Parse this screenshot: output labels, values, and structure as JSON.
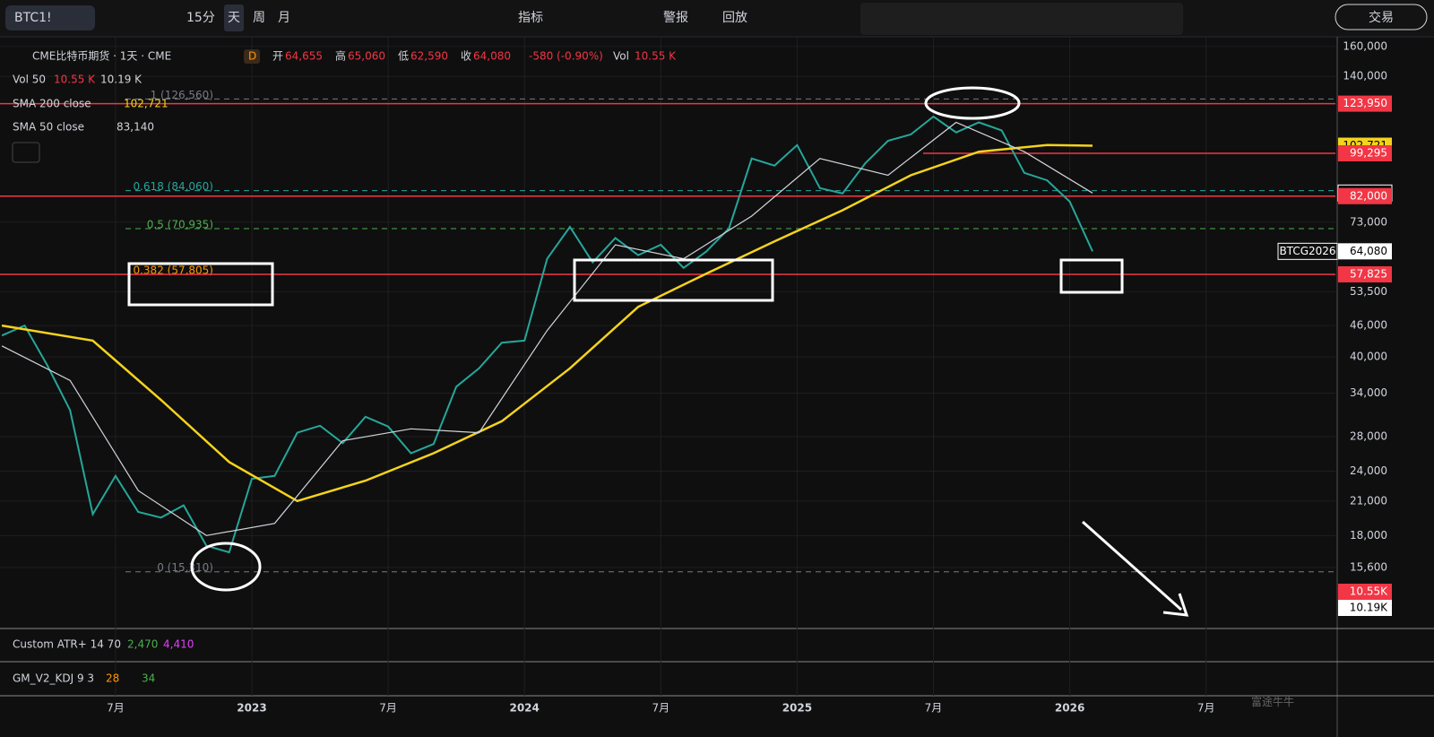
{
  "toolbar": {
    "symbol": "BTC1!",
    "intervals": [
      "15分",
      "天",
      "周",
      "月"
    ],
    "indicators": "指标",
    "alerts": "警报",
    "replay": "回放",
    "trade": "交易"
  },
  "legend": {
    "badge": "D",
    "ohlc": [
      {
        "label": "开",
        "value": "64,655"
      },
      {
        "label": "高",
        "value": "65,060"
      },
      {
        "label": "低",
        "value": "62,590"
      },
      {
        "label": "收",
        "value": "64,080"
      }
    ],
    "change": "-580 (-0.90%)",
    "vol_label": "Vol",
    "vol": "10.55 K",
    "vol50": {
      "name": "Vol 50",
      "a": "10.55 K",
      "b": "10.19 K"
    },
    "sma200_value": "102,721",
    "sma50_value": "83,140"
  },
  "chart_data": {
    "type": "line",
    "log_scale": true,
    "grid": true,
    "ylim": [
      11930,
      167800
    ],
    "yticks": [
      {
        "value": 160000,
        "label": "160,000"
      },
      {
        "value": 140000,
        "label": "140,000"
      },
      {
        "value": 73000,
        "label": "73,000"
      },
      {
        "value": 53500,
        "label": "53,500"
      },
      {
        "value": 46000,
        "label": "46,000"
      },
      {
        "value": 40000,
        "label": "40,000"
      },
      {
        "value": 34000,
        "label": "34,000"
      },
      {
        "value": 28000,
        "label": "28,000"
      },
      {
        "value": 24000,
        "label": "24,000"
      },
      {
        "value": 21000,
        "label": "21,000"
      },
      {
        "value": 18000,
        "label": "18,000"
      },
      {
        "value": 15600,
        "label": "15,600"
      }
    ],
    "xticks": [
      {
        "value": "2022-07",
        "label": "7月"
      },
      {
        "value": "2023-01",
        "label": "2023"
      },
      {
        "value": "2023-07",
        "label": "7月"
      },
      {
        "value": "2024-01",
        "label": "2024"
      },
      {
        "value": "2024-07",
        "label": "7月"
      },
      {
        "value": "2025-01",
        "label": "2025"
      },
      {
        "value": "2025-07",
        "label": "7月"
      },
      {
        "value": "2026-01",
        "label": "2026"
      },
      {
        "value": "2026-07",
        "label": "7月"
      }
    ],
    "series": [
      {
        "name": "CME比特币期货 · 1天 · CME",
        "color": "#26a69a",
        "x": [
          "2022-02",
          "2022-03",
          "2022-04",
          "2022-05",
          "2022-06",
          "2022-07",
          "2022-08",
          "2022-09",
          "2022-10",
          "2022-11",
          "2022-12",
          "2023-01",
          "2023-02",
          "2023-03",
          "2023-04",
          "2023-05",
          "2023-06",
          "2023-07",
          "2023-08",
          "2023-09",
          "2023-10",
          "2023-11",
          "2023-12",
          "2024-01",
          "2024-02",
          "2024-03",
          "2024-04",
          "2024-05",
          "2024-06",
          "2024-07",
          "2024-08",
          "2024-09",
          "2024-10",
          "2024-11",
          "2024-12",
          "2025-01",
          "2025-02",
          "2025-03",
          "2025-04",
          "2025-05",
          "2025-06",
          "2025-07",
          "2025-08",
          "2025-09",
          "2025-10",
          "2025-11",
          "2025-12",
          "2026-01",
          "2026-02"
        ],
        "values": [
          44000,
          46000,
          38500,
          31500,
          19800,
          23500,
          20000,
          19500,
          20600,
          17200,
          16700,
          23200,
          23500,
          28500,
          29400,
          27200,
          30600,
          29300,
          26000,
          27100,
          35000,
          38000,
          42600,
          43000,
          62000,
          71500,
          61000,
          68000,
          63000,
          66000,
          59500,
          64000,
          71000,
          97000,
          94000,
          103000,
          85000,
          83000,
          95000,
          105000,
          108000,
          117000,
          109000,
          114000,
          110000,
          91000,
          88000,
          80000,
          64080
        ]
      },
      {
        "name": "SMA 200 close",
        "color": "#f5d31c",
        "x": [
          "2022-02",
          "2022-06",
          "2022-09",
          "2022-12",
          "2023-03",
          "2023-06",
          "2023-09",
          "2023-12",
          "2024-03",
          "2024-06",
          "2024-09",
          "2024-12",
          "2025-03",
          "2025-06",
          "2025-09",
          "2025-12",
          "2026-02"
        ],
        "values": [
          46000,
          43000,
          33000,
          25000,
          21000,
          23000,
          26000,
          30000,
          38000,
          50000,
          58000,
          67000,
          77000,
          90000,
          100000,
          103000,
          102721
        ]
      },
      {
        "name": "SMA 50 close",
        "color": "#d1d4dc",
        "x": [
          "2022-02",
          "2022-05",
          "2022-08",
          "2022-11",
          "2023-02",
          "2023-05",
          "2023-08",
          "2023-11",
          "2024-02",
          "2024-05",
          "2024-08",
          "2024-11",
          "2025-02",
          "2025-05",
          "2025-08",
          "2025-11",
          "2026-02"
        ],
        "values": [
          42000,
          36000,
          22000,
          18000,
          19000,
          27500,
          29000,
          28500,
          45000,
          66000,
          62000,
          75000,
          97000,
          90000,
          114000,
          100000,
          83140
        ]
      }
    ]
  },
  "levels": [
    {
      "value": 123950,
      "label": "123,950",
      "bg": "#f23645",
      "fg": "#ffffff",
      "line": true
    },
    {
      "value": 102721,
      "label": "102,721",
      "bg": "#f5d31c",
      "fg": "#000000",
      "line": false
    },
    {
      "value": 99295,
      "label": "99,295",
      "bg": "#f23645",
      "fg": "#ffffff",
      "line": true
    },
    {
      "value": 83140,
      "label": "83,140",
      "bg": "#0f0f0f",
      "fg": "#ffffff",
      "line": false
    },
    {
      "value": 82000,
      "label": "82,000",
      "bg": "#f23645",
      "fg": "#ffffff",
      "line": true
    },
    {
      "value": 64080,
      "label": "64,080",
      "bg": "#ffffff",
      "fg": "#000000",
      "line": false,
      "tag": "BTCG2026"
    },
    {
      "value": 57825,
      "label": "57,825",
      "bg": "#f23645",
      "fg": "#ffffff",
      "line": true
    }
  ],
  "fib": [
    {
      "value": 126560,
      "label": "1 (126,560)",
      "color": "#787b86"
    },
    {
      "value": 84060,
      "label": "0.618 (84,060)",
      "color": "#26a69a"
    },
    {
      "value": 70935,
      "label": "0.5 (70,935)",
      "color": "#4caf50"
    },
    {
      "value": 57805,
      "label": "0.382 (57,805)",
      "color": "#ff9800"
    },
    {
      "value": 15310,
      "label": "0 (15,310)",
      "color": "#787b86"
    }
  ],
  "volume_labels": [
    {
      "label": "10.55K",
      "bg": "#f23645",
      "fg": "#ffffff"
    },
    {
      "label": "10.19K",
      "bg": "#ffffff",
      "fg": "#000000"
    }
  ],
  "panes": [
    {
      "name": "Custom ATR+ 14 70",
      "values": [
        "2,470",
        "4,410"
      ],
      "colors": [
        "#4caf50",
        "#e040fb"
      ]
    },
    {
      "name": "GM_V2_KDJ 9 3",
      "values": [
        "28",
        "34"
      ],
      "colors": [
        "#ff9800",
        "#4caf50"
      ]
    }
  ],
  "watermark": "富途牛牛"
}
